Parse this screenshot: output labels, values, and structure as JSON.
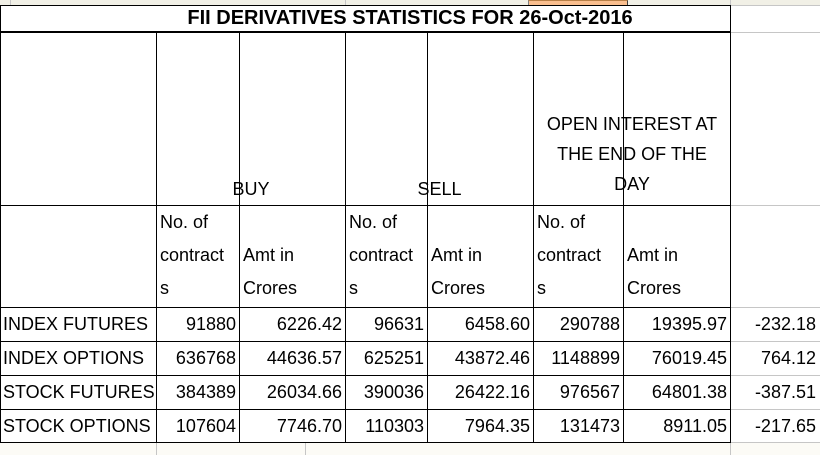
{
  "sheet": {
    "title": "FII DERIVATIVES STATISTICS FOR 26-Oct-2016",
    "column_groups": {
      "buy": "BUY",
      "sell": "SELL",
      "open_interest_lines": [
        "OPEN INTEREST AT",
        "THE END OF THE",
        "DAY"
      ]
    },
    "subheaders": {
      "contracts_lines": [
        "No. of",
        "contract",
        "s"
      ],
      "amount_lines": [
        "Amt in",
        "Crores"
      ]
    },
    "rows": [
      {
        "label": "INDEX FUTURES",
        "values": [
          "91880",
          "6226.42",
          "96631",
          "6458.60",
          "290788",
          "19395.97",
          "-232.18"
        ]
      },
      {
        "label": "INDEX OPTIONS",
        "values": [
          "636768",
          "44636.57",
          "625251",
          "43872.46",
          "1148899",
          "76019.45",
          "764.12"
        ]
      },
      {
        "label": "STOCK FUTURES",
        "values": [
          "384389",
          "26034.66",
          "390036",
          "26422.16",
          "976567",
          "64801.38",
          "-387.51"
        ]
      },
      {
        "label": "STOCK OPTIONS",
        "values": [
          "107604",
          "7746.70",
          "110303",
          "7964.35",
          "131473",
          "8911.05",
          "-217.65"
        ]
      }
    ],
    "colors": {
      "highlight_cell": "#fabf8f",
      "table_border": "#000000",
      "gridline": "#c6c6c6"
    }
  }
}
